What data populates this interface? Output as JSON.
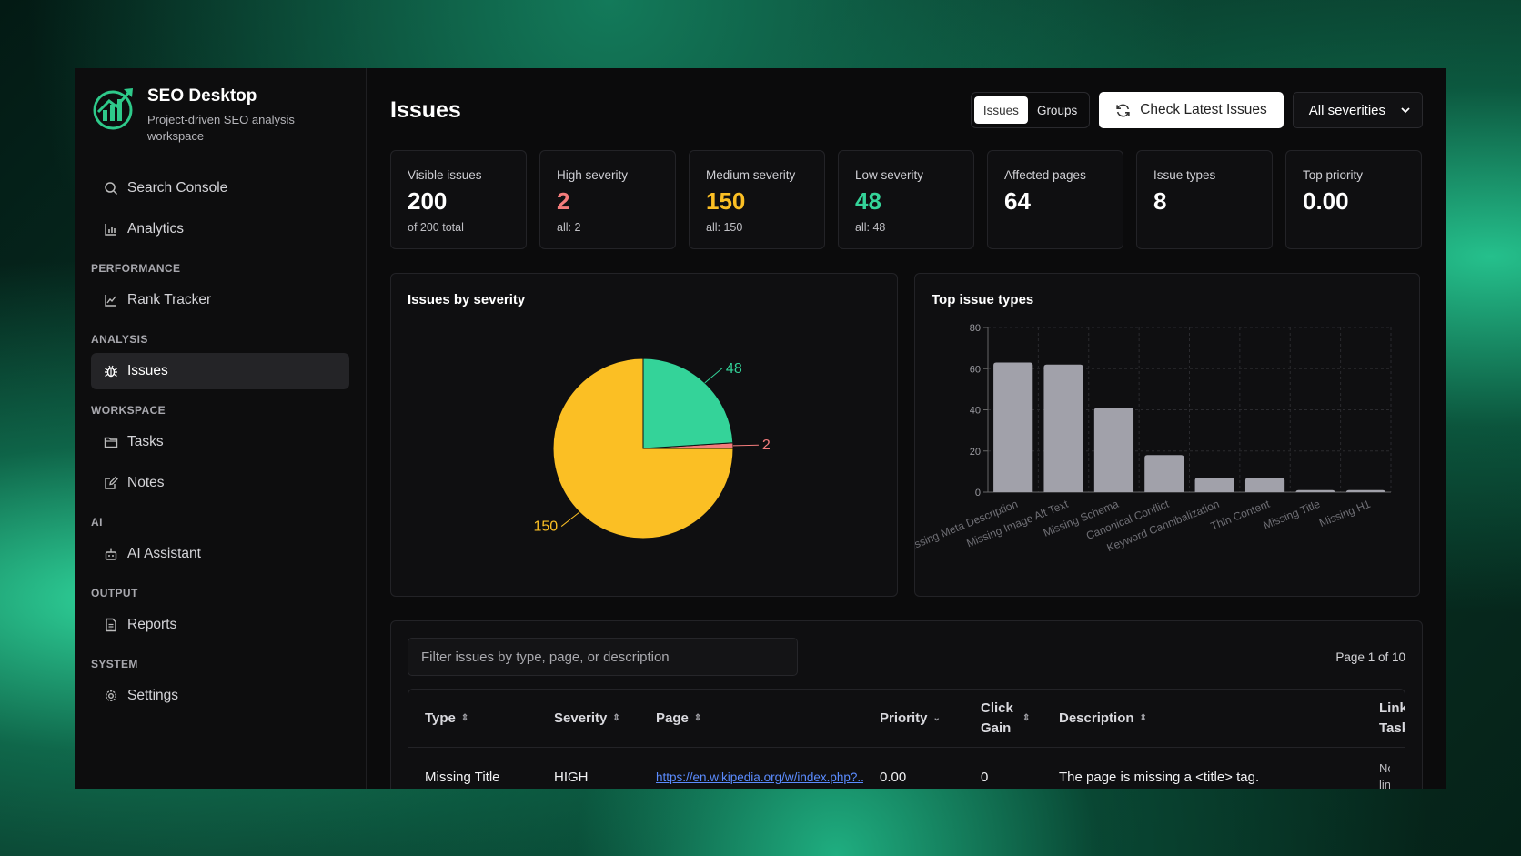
{
  "app": {
    "name": "SEO Desktop",
    "subtitle": "Project-driven SEO analysis workspace"
  },
  "sidebar": {
    "top_items": [
      {
        "label": "Search Console",
        "icon": "search-icon"
      },
      {
        "label": "Analytics",
        "icon": "bar-chart-icon"
      }
    ],
    "sections": [
      {
        "label": "PERFORMANCE",
        "items": [
          {
            "label": "Rank Tracker",
            "icon": "line-chart-icon"
          }
        ]
      },
      {
        "label": "ANALYSIS",
        "items": [
          {
            "label": "Issues",
            "icon": "bug-icon",
            "active": true
          }
        ]
      },
      {
        "label": "WORKSPACE",
        "items": [
          {
            "label": "Tasks",
            "icon": "folder-icon"
          },
          {
            "label": "Notes",
            "icon": "edit-icon"
          }
        ]
      },
      {
        "label": "AI",
        "items": [
          {
            "label": "AI Assistant",
            "icon": "bot-icon"
          }
        ]
      },
      {
        "label": "OUTPUT",
        "items": [
          {
            "label": "Reports",
            "icon": "document-icon"
          }
        ]
      },
      {
        "label": "SYSTEM",
        "items": [
          {
            "label": "Settings",
            "icon": "gear-icon"
          }
        ]
      }
    ]
  },
  "header": {
    "title": "Issues",
    "toggle": {
      "issues": "Issues",
      "groups": "Groups",
      "selected": "Issues"
    },
    "check_button": "Check Latest Issues",
    "severity_select": "All severities"
  },
  "stats": [
    {
      "label": "Visible issues",
      "value": "200",
      "sub": "of 200 total",
      "color": "#ffffff"
    },
    {
      "label": "High severity",
      "value": "2",
      "sub": "all: 2",
      "color": "#f47c7c"
    },
    {
      "label": "Medium severity",
      "value": "150",
      "sub": "all: 150",
      "color": "#fbbf24"
    },
    {
      "label": "Low severity",
      "value": "48",
      "sub": "all: 48",
      "color": "#34d399"
    },
    {
      "label": "Affected pages",
      "value": "64",
      "sub": "",
      "color": "#ffffff"
    },
    {
      "label": "Issue types",
      "value": "8",
      "sub": "",
      "color": "#ffffff"
    },
    {
      "label": "Top priority",
      "value": "0.00",
      "sub": "",
      "color": "#ffffff"
    }
  ],
  "charts": {
    "pie_title": "Issues by severity",
    "bar_title": "Top issue types"
  },
  "chart_data": [
    {
      "type": "pie",
      "title": "Issues by severity",
      "slices": [
        {
          "name": "Medium",
          "value": 150,
          "color": "#fbbf24"
        },
        {
          "name": "High",
          "value": 2,
          "color": "#f47c7c"
        },
        {
          "name": "Low",
          "value": 48,
          "color": "#34d399"
        }
      ]
    },
    {
      "type": "bar",
      "title": "Top issue types",
      "categories": [
        "Missing Meta Description",
        "Missing Image Alt Text",
        "Missing Schema",
        "Canonical Conflict",
        "Keyword Cannibalization",
        "Thin Content",
        "Missing Title",
        "Missing H1"
      ],
      "values": [
        63,
        62,
        41,
        18,
        7,
        7,
        1,
        1
      ],
      "ylim": [
        0,
        80
      ],
      "yticks": [
        0,
        20,
        40,
        60,
        80
      ],
      "grid": true,
      "bar_color": "#a1a1aa"
    }
  ],
  "table": {
    "filter_placeholder": "Filter issues by type, page, or description",
    "page_info": "Page 1 of 10",
    "columns": [
      "Type",
      "Severity",
      "Page",
      "Priority",
      "Click Gain",
      "Description",
      "Link Task"
    ],
    "rows": [
      {
        "type": "Missing Title",
        "severity": "HIGH",
        "page": "https://en.wikipedia.org/w/index.php?...",
        "priority": "0.00",
        "click_gain": "0",
        "description": "The page is missing a <title> tag.",
        "link_task": "No linked"
      }
    ]
  }
}
